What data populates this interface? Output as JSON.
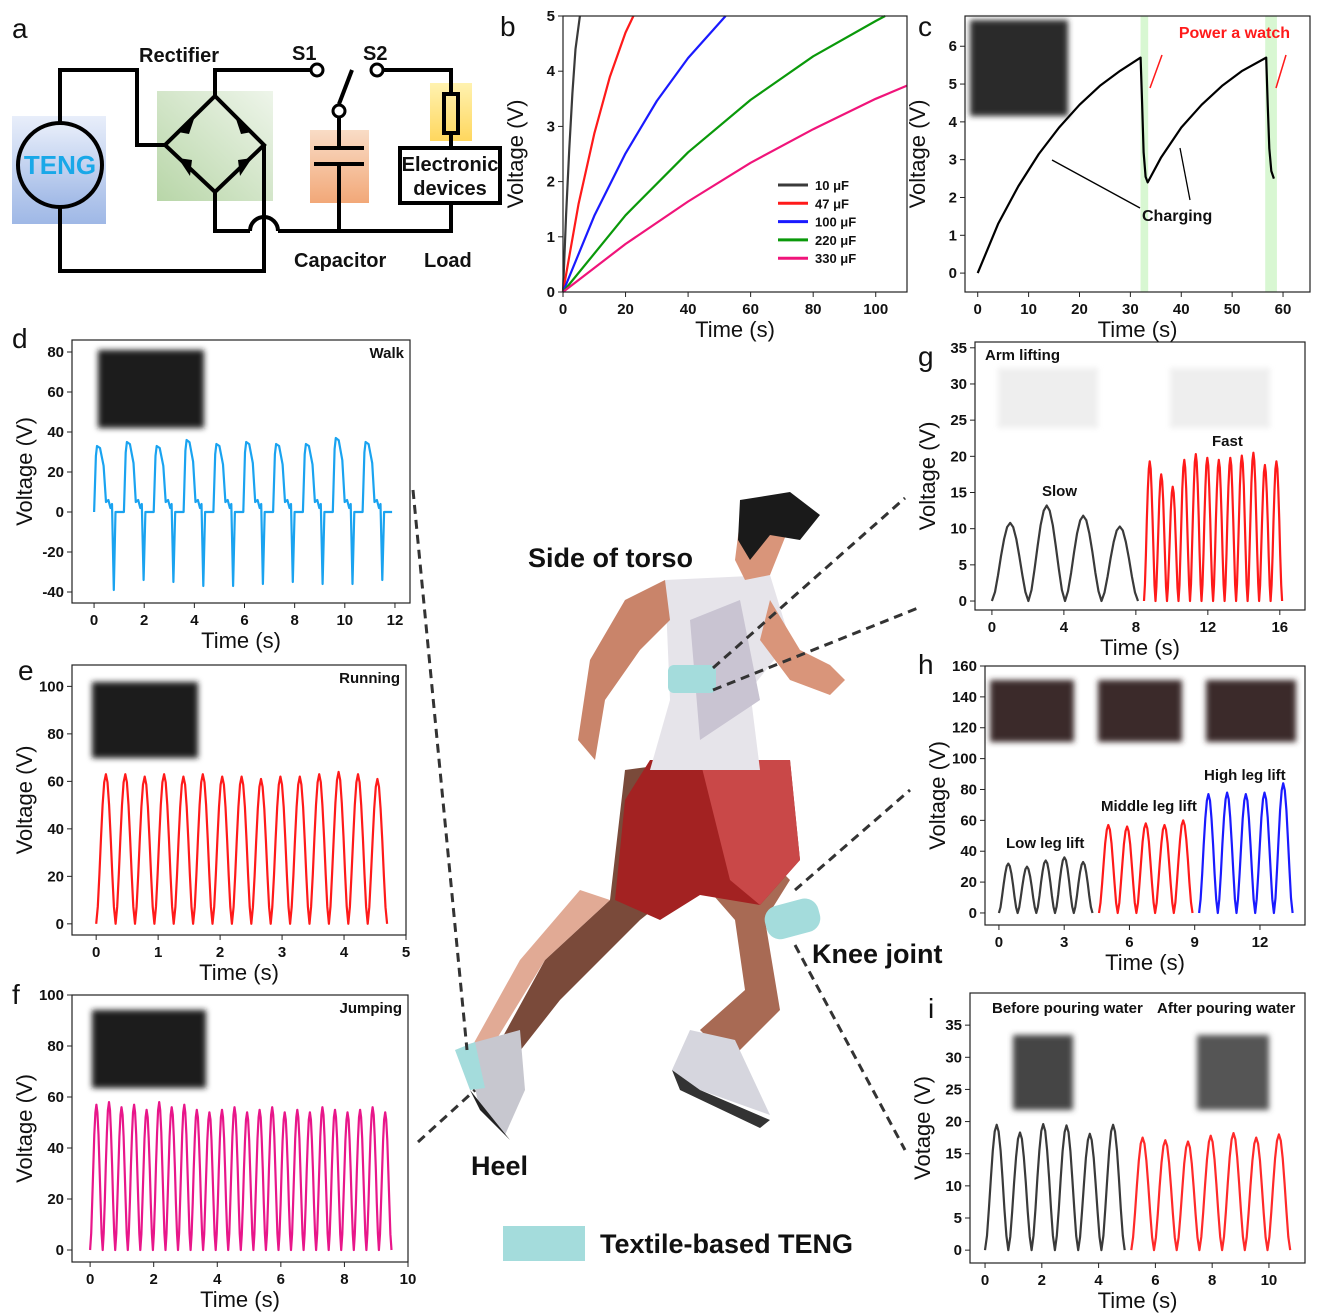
{
  "panel_letters": [
    "a",
    "b",
    "c",
    "d",
    "e",
    "f",
    "g",
    "h",
    "i"
  ],
  "circuit": {
    "teng": "TENG",
    "rectifier": "Rectifier",
    "s1": "S1",
    "s2": "S2",
    "capacitor": "Capacitor",
    "load": "Load",
    "device_line1": "Electronic",
    "device_line2": "devices",
    "colors": {
      "teng": "#9fb8e6",
      "rectifier": "#b8d6a8",
      "capacitor": "#f2a878",
      "load": "#ffd75e",
      "teng_text": "#19a8e8"
    }
  },
  "runner": {
    "labels": {
      "torso": "Side of torso",
      "knee": "Knee joint",
      "heel": "Heel"
    },
    "legend": "Textile-based TENG",
    "teng_color": "#a4dcdc"
  },
  "chart_data": [
    {
      "id": "b",
      "type": "line",
      "xlabel": "Time (s)",
      "ylabel": "Voltage (V)",
      "xlim": [
        0,
        110
      ],
      "ylim": [
        0,
        5
      ],
      "xticks": [
        0,
        20,
        40,
        60,
        80,
        100
      ],
      "yticks": [
        0,
        1,
        2,
        3,
        4,
        5
      ],
      "legend_placement": "bottom-right",
      "series": [
        {
          "name": "10 μF",
          "color": "#3a3a3a",
          "points": [
            [
              0,
              0
            ],
            [
              1,
              1.4
            ],
            [
              2,
              2.6
            ],
            [
              3,
              3.6
            ],
            [
              4,
              4.4
            ],
            [
              5.4,
              5
            ]
          ]
        },
        {
          "name": "47 μF",
          "color": "#ff1a1a",
          "points": [
            [
              0,
              0
            ],
            [
              5,
              1.6
            ],
            [
              10,
              2.87
            ],
            [
              15,
              3.9
            ],
            [
              20,
              4.7
            ],
            [
              22.5,
              5
            ]
          ]
        },
        {
          "name": "100 μF",
          "color": "#1a1aff",
          "points": [
            [
              0,
              0
            ],
            [
              10,
              1.38
            ],
            [
              20,
              2.51
            ],
            [
              30,
              3.46
            ],
            [
              40,
              4.24
            ],
            [
              52,
              5
            ]
          ]
        },
        {
          "name": "220 μF",
          "color": "#0a990a",
          "points": [
            [
              0,
              0
            ],
            [
              20,
              1.39
            ],
            [
              40,
              2.53
            ],
            [
              60,
              3.48
            ],
            [
              80,
              4.27
            ],
            [
              100,
              4.91
            ],
            [
              103,
              5
            ]
          ]
        },
        {
          "name": "330 μF",
          "color": "#f0147a",
          "points": [
            [
              0,
              0
            ],
            [
              20,
              0.87
            ],
            [
              40,
              1.64
            ],
            [
              60,
              2.34
            ],
            [
              80,
              2.95
            ],
            [
              100,
              3.5
            ],
            [
              110,
              3.74
            ]
          ]
        }
      ]
    },
    {
      "id": "c",
      "type": "line",
      "xlabel": "Time (s)",
      "ylabel": "Voltage (V)",
      "xlim": [
        -2.5,
        65.3
      ],
      "ylim": [
        -0.5,
        6.8
      ],
      "xticks": [
        0,
        10,
        20,
        30,
        40,
        50,
        60
      ],
      "yticks": [
        0,
        1,
        2,
        3,
        4,
        5,
        6
      ],
      "annotations": {
        "title": "Power a watch",
        "charging": "Charging"
      },
      "highlight_bands": [
        [
          32,
          33.5
        ],
        [
          56.5,
          58.8
        ]
      ],
      "band_color": "#d8f7d2",
      "series": [
        {
          "color": "#000000",
          "points": [
            [
              0,
              0
            ],
            [
              4,
              1.3
            ],
            [
              8,
              2.3
            ],
            [
              12,
              3.15
            ],
            [
              16,
              3.85
            ],
            [
              20,
              4.45
            ],
            [
              24,
              4.95
            ],
            [
              28,
              5.35
            ],
            [
              32,
              5.7
            ],
            [
              32.3,
              4.5
            ],
            [
              32.6,
              3.2
            ],
            [
              33,
              2.55
            ],
            [
              33.4,
              2.4
            ],
            [
              36,
              3.05
            ],
            [
              40,
              3.85
            ],
            [
              44,
              4.45
            ],
            [
              48,
              4.95
            ],
            [
              52,
              5.35
            ],
            [
              56.7,
              5.7
            ],
            [
              57,
              4.4
            ],
            [
              57.3,
              3.3
            ],
            [
              57.7,
              2.7
            ],
            [
              58.2,
              2.5
            ]
          ]
        }
      ]
    },
    {
      "id": "d",
      "type": "line",
      "title": "Walk",
      "xlabel": "Time (s)",
      "ylabel": "Voltage (V)",
      "xlim": [
        -0.88,
        12.6
      ],
      "ylim": [
        -45.5,
        86
      ],
      "xticks": [
        0,
        2,
        4,
        6,
        8,
        10,
        12
      ],
      "yticks": [
        -40,
        -20,
        0,
        20,
        40,
        60,
        80
      ],
      "waveform": "walk",
      "segments": [
        {
          "color": "#1aa3f0",
          "start": 0,
          "period": 1.19,
          "peaks": [
            33,
            35,
            33,
            36,
            34,
            35,
            34,
            34,
            37,
            35
          ],
          "troughs": [
            -39,
            -34,
            -35,
            -37,
            -37,
            -36,
            -35,
            -36,
            -36,
            -34
          ]
        }
      ]
    },
    {
      "id": "e",
      "type": "line",
      "title": "Running",
      "xlabel": "Time (s)",
      "ylabel": "Voltage (V)",
      "xlim": [
        -0.39,
        5
      ],
      "ylim": [
        -4.7,
        109
      ],
      "xticks": [
        0,
        1,
        2,
        3,
        4,
        5
      ],
      "yticks": [
        0,
        20,
        40,
        60,
        80,
        100
      ],
      "waveform": "pulse",
      "segments": [
        {
          "color": "#ff1a1a",
          "start": 0,
          "period": 0.313,
          "peaks": [
            63,
            63,
            62,
            63,
            62,
            63,
            62,
            62,
            61,
            62,
            62,
            63,
            64,
            63,
            61
          ]
        }
      ]
    },
    {
      "id": "f",
      "type": "line",
      "title": "Jumping",
      "xlabel": "Time (s)",
      "ylabel": "Voltage (V)",
      "xlim": [
        -0.57,
        10
      ],
      "ylim": [
        -4.7,
        100
      ],
      "xticks": [
        0,
        2,
        4,
        6,
        8,
        10
      ],
      "yticks": [
        0,
        20,
        40,
        60,
        80,
        100
      ],
      "waveform": "pulse",
      "segments": [
        {
          "color": "#e8168a",
          "start": 0,
          "period": 0.395,
          "peaks": [
            57,
            58,
            56,
            57,
            55,
            58,
            56,
            57,
            55,
            54,
            55,
            56,
            54,
            55,
            56,
            54,
            55,
            54,
            56,
            55,
            54,
            55,
            56,
            54
          ]
        }
      ]
    },
    {
      "id": "g",
      "type": "line",
      "title": "Arm lifting",
      "xlabel": "Time (s)",
      "ylabel": "Voltage (V)",
      "xlim": [
        -0.94,
        17.4
      ],
      "ylim": [
        -1.24,
        35.8
      ],
      "xticks": [
        0,
        4,
        8,
        12,
        16
      ],
      "yticks": [
        0,
        5,
        10,
        15,
        20,
        25,
        30,
        35
      ],
      "waveform": "pulse",
      "annotations": {
        "slow": "Slow",
        "fast": "Fast"
      },
      "segments": [
        {
          "name": "Slow",
          "color": "#3a3a3a",
          "start": 0,
          "period": 2.03,
          "peaks": [
            10.8,
            13.2,
            11.8,
            10.3
          ]
        },
        {
          "name": "Fast",
          "color": "#ff1a1a",
          "start": 8.45,
          "period": 0.64,
          "peaks": [
            19.3,
            17.5,
            15.8,
            19.5,
            20.3,
            19.8,
            19.5,
            19.8,
            20.1,
            20.5,
            18.8,
            19.3
          ]
        }
      ]
    },
    {
      "id": "h",
      "type": "line",
      "xlabel": "Time (s)",
      "ylabel": "Voltage (V)",
      "xlim": [
        -0.64,
        14.07
      ],
      "ylim": [
        -7.8,
        160
      ],
      "xticks": [
        0,
        3,
        6,
        9,
        12
      ],
      "yticks": [
        0,
        20,
        40,
        60,
        80,
        100,
        120,
        140,
        160
      ],
      "waveform": "pulse",
      "annotations": {
        "low": "Low leg lift",
        "middle": "Middle leg lift",
        "high": "High leg lift"
      },
      "segments": [
        {
          "name": "Low leg lift",
          "color": "#3a3a3a",
          "start": 0,
          "period": 0.86,
          "peaks": [
            32,
            30,
            34,
            36,
            33
          ]
        },
        {
          "name": "Middle leg lift",
          "color": "#ff1a1a",
          "start": 4.6,
          "period": 0.86,
          "peaks": [
            57,
            56,
            58,
            57,
            60
          ]
        },
        {
          "name": "High leg lift",
          "color": "#1a1aff",
          "start": 9.2,
          "period": 0.86,
          "peaks": [
            77,
            78,
            77,
            78,
            84
          ]
        }
      ]
    },
    {
      "id": "i",
      "type": "line",
      "xlabel": "Time (s)",
      "ylabel": "Votage (V)",
      "xlim": [
        -0.53,
        11.27
      ],
      "ylim": [
        -2,
        40
      ],
      "xticks": [
        0,
        2,
        4,
        6,
        8,
        10
      ],
      "yticks": [
        0,
        5,
        10,
        15,
        20,
        25,
        30,
        35
      ],
      "waveform": "pulse",
      "annotations": {
        "before": "Before pouring water",
        "after": "After pouring water"
      },
      "segments": [
        {
          "name": "Before pouring water",
          "color": "#3a3a3a",
          "start": 0,
          "period": 0.82,
          "peaks": [
            19.5,
            18.3,
            19.6,
            19.4,
            18.1,
            19.5
          ]
        },
        {
          "name": "After pouring water",
          "color": "#ff2a2a",
          "start": 5.15,
          "period": 0.8,
          "peaks": [
            17.5,
            17.1,
            16.9,
            17.8,
            18.2,
            17.5,
            18
          ]
        }
      ]
    }
  ]
}
